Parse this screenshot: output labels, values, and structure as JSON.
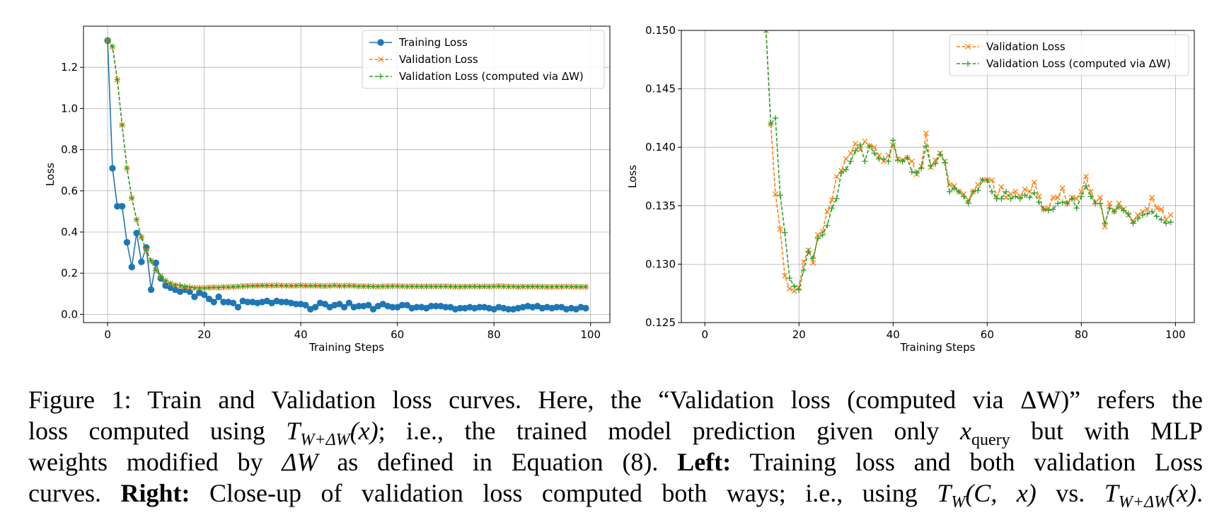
{
  "chart_data": [
    {
      "type": "line",
      "xlabel": "Training Steps",
      "ylabel": "Loss",
      "xlim": [
        -5,
        104
      ],
      "ylim": [
        -0.04,
        1.4
      ],
      "xticks": [
        0,
        20,
        40,
        60,
        80,
        100
      ],
      "yticks": [
        0.0,
        0.2,
        0.4,
        0.6,
        0.8,
        1.0,
        1.2
      ],
      "ytick_labels": [
        "0.0",
        "0.2",
        "0.4",
        "0.6",
        "0.8",
        "1.0",
        "1.2"
      ],
      "grid": true,
      "legend_position": "upper-right",
      "series": [
        {
          "name": "Training Loss",
          "color": "#1f77b4",
          "marker": "circle",
          "linestyle": "solid",
          "x": [
            0,
            1,
            2,
            3,
            4,
            5,
            6,
            7,
            8,
            9,
            10,
            11,
            12,
            13,
            14,
            15,
            16,
            17,
            18,
            19,
            20,
            21,
            22,
            23,
            24,
            25,
            26,
            27,
            28,
            29,
            30,
            31,
            32,
            33,
            34,
            35,
            36,
            37,
            38,
            39,
            40,
            41,
            42,
            43,
            44,
            45,
            46,
            47,
            48,
            49,
            50,
            51,
            52,
            53,
            54,
            55,
            56,
            57,
            58,
            59,
            60,
            61,
            62,
            63,
            64,
            65,
            66,
            67,
            68,
            69,
            70,
            71,
            72,
            73,
            74,
            75,
            76,
            77,
            78,
            79,
            80,
            81,
            82,
            83,
            84,
            85,
            86,
            87,
            88,
            89,
            90,
            91,
            92,
            93,
            94,
            95,
            96,
            97,
            98,
            99
          ],
          "y": [
            1.33,
            0.71,
            0.525,
            0.525,
            0.35,
            0.23,
            0.395,
            0.255,
            0.325,
            0.12,
            0.25,
            0.175,
            0.14,
            0.13,
            0.12,
            0.11,
            0.12,
            0.11,
            0.085,
            0.105,
            0.095,
            0.075,
            0.06,
            0.085,
            0.06,
            0.06,
            0.055,
            0.035,
            0.065,
            0.06,
            0.06,
            0.055,
            0.06,
            0.065,
            0.055,
            0.065,
            0.06,
            0.06,
            0.055,
            0.05,
            0.05,
            0.045,
            0.025,
            0.035,
            0.055,
            0.05,
            0.035,
            0.045,
            0.05,
            0.035,
            0.055,
            0.035,
            0.04,
            0.04,
            0.045,
            0.025,
            0.04,
            0.05,
            0.04,
            0.035,
            0.035,
            0.045,
            0.045,
            0.03,
            0.035,
            0.035,
            0.03,
            0.04,
            0.04,
            0.04,
            0.035,
            0.035,
            0.025,
            0.03,
            0.03,
            0.035,
            0.03,
            0.035,
            0.035,
            0.03,
            0.025,
            0.035,
            0.03,
            0.025,
            0.025,
            0.03,
            0.035,
            0.04,
            0.035,
            0.04,
            0.03,
            0.035,
            0.03,
            0.035,
            0.035,
            0.025,
            0.03,
            0.025,
            0.035,
            0.03
          ]
        },
        {
          "name": "Validation Loss",
          "color": "#ff7f0e",
          "marker": "x",
          "linestyle": "dashed",
          "x": [
            0,
            1,
            2,
            3,
            4,
            5,
            6,
            7,
            8,
            9,
            10,
            11,
            12,
            13,
            14,
            15,
            16,
            17,
            18,
            19,
            20,
            21,
            22,
            23,
            24,
            25,
            26,
            27,
            28,
            29,
            30,
            31,
            32,
            33,
            34,
            35,
            36,
            37,
            38,
            39,
            40,
            41,
            42,
            43,
            44,
            45,
            46,
            47,
            48,
            49,
            50,
            51,
            52,
            53,
            54,
            55,
            56,
            57,
            58,
            59,
            60,
            61,
            62,
            63,
            64,
            65,
            66,
            67,
            68,
            69,
            70,
            71,
            72,
            73,
            74,
            75,
            76,
            77,
            78,
            79,
            80,
            81,
            82,
            83,
            84,
            85,
            86,
            87,
            88,
            89,
            90,
            91,
            92,
            93,
            94,
            95,
            96,
            97,
            98,
            99
          ],
          "y": [
            1.33,
            1.3,
            1.14,
            0.92,
            0.71,
            0.565,
            0.46,
            0.375,
            0.31,
            0.26,
            0.215,
            0.185,
            0.163,
            0.15,
            0.142,
            0.136,
            0.133,
            0.129,
            0.1279,
            0.1277,
            0.128,
            0.1302,
            0.1312,
            0.1301,
            0.1325,
            0.1328,
            0.1345,
            0.1355,
            0.1375,
            0.138,
            0.139,
            0.1395,
            0.1403,
            0.1398,
            0.1405,
            0.1401,
            0.14,
            0.1393,
            0.1388,
            0.1393,
            0.1402,
            0.139,
            0.1389,
            0.1391,
            0.1388,
            0.1377,
            0.1384,
            0.1412,
            0.1383,
            0.1389,
            0.1395,
            0.1388,
            0.1368,
            0.1367,
            0.1362,
            0.136,
            0.1355,
            0.1362,
            0.1368,
            0.1372,
            0.1372,
            0.1372,
            0.1358,
            0.1366,
            0.1357,
            0.136,
            0.1362,
            0.1358,
            0.1364,
            0.1362,
            0.137,
            0.1358,
            0.1347,
            0.1348,
            0.1357,
            0.1357,
            0.1365,
            0.1352,
            0.1357,
            0.1356,
            0.1362,
            0.1375,
            0.1362,
            0.1353,
            0.1357,
            0.1332,
            0.1352,
            0.1345,
            0.1352,
            0.1347,
            0.1342,
            0.1337,
            0.1342,
            0.1345,
            0.1347,
            0.1357,
            0.1348,
            0.1347,
            0.1338,
            0.1342
          ]
        },
        {
          "name": "Validation Loss (computed via ΔW)",
          "color": "#2ca02c",
          "marker": "+",
          "linestyle": "dashed",
          "x": [
            0,
            1,
            2,
            3,
            4,
            5,
            6,
            7,
            8,
            9,
            10,
            11,
            12,
            13,
            14,
            15,
            16,
            17,
            18,
            19,
            20,
            21,
            22,
            23,
            24,
            25,
            26,
            27,
            28,
            29,
            30,
            31,
            32,
            33,
            34,
            35,
            36,
            37,
            38,
            39,
            40,
            41,
            42,
            43,
            44,
            45,
            46,
            47,
            48,
            49,
            50,
            51,
            52,
            53,
            54,
            55,
            56,
            57,
            58,
            59,
            60,
            61,
            62,
            63,
            64,
            65,
            66,
            67,
            68,
            69,
            70,
            71,
            72,
            73,
            74,
            75,
            76,
            77,
            78,
            79,
            80,
            81,
            82,
            83,
            84,
            85,
            86,
            87,
            88,
            89,
            90,
            91,
            92,
            93,
            94,
            95,
            96,
            97,
            98,
            99
          ],
          "y": [
            1.33,
            1.3,
            1.14,
            0.92,
            0.71,
            0.565,
            0.46,
            0.375,
            0.31,
            0.26,
            0.215,
            0.185,
            0.163,
            0.15,
            0.142,
            0.1425,
            0.1359,
            0.1327,
            0.1288,
            0.1281,
            0.1278,
            0.1295,
            0.1311,
            0.1305,
            0.1322,
            0.1325,
            0.1333,
            0.1348,
            0.1356,
            0.1378,
            0.1381,
            0.1388,
            0.1397,
            0.1402,
            0.1388,
            0.1401,
            0.1395,
            0.139,
            0.139,
            0.1388,
            0.1406,
            0.1389,
            0.1388,
            0.1391,
            0.1379,
            0.1378,
            0.1382,
            0.1401,
            0.1384,
            0.1386,
            0.1394,
            0.1387,
            0.1362,
            0.1365,
            0.1362,
            0.1358,
            0.1352,
            0.1362,
            0.1363,
            0.1372,
            0.1372,
            0.1362,
            0.1356,
            0.1356,
            0.1362,
            0.1356,
            0.1358,
            0.1356,
            0.1359,
            0.1357,
            0.1361,
            0.1353,
            0.1347,
            0.1346,
            0.1347,
            0.1352,
            0.1353,
            0.1352,
            0.1356,
            0.1348,
            0.1358,
            0.1367,
            0.1358,
            0.1352,
            0.1352,
            0.1335,
            0.1348,
            0.1345,
            0.1349,
            0.1346,
            0.1343,
            0.1335,
            0.1339,
            0.1342,
            0.1343,
            0.1345,
            0.1341,
            0.1338,
            0.1335,
            0.1336
          ]
        }
      ]
    },
    {
      "type": "line",
      "xlabel": "Training Steps",
      "ylabel": "Loss",
      "xlim": [
        -5,
        104
      ],
      "ylim": [
        0.125,
        0.15
      ],
      "xticks": [
        0,
        20,
        40,
        60,
        80,
        100
      ],
      "yticks": [
        0.125,
        0.13,
        0.135,
        0.14,
        0.145,
        0.15
      ],
      "ytick_labels": [
        "0.125",
        "0.130",
        "0.135",
        "0.140",
        "0.145",
        "0.150"
      ],
      "grid": true,
      "legend_position": "upper-right",
      "series_refs": [
        "Validation Loss",
        "Validation Loss (computed via ΔW)"
      ]
    }
  ],
  "caption": {
    "line1": "Figure 1: Train and Validation loss curves. Here, the “Validation loss (computed via ΔW)” refers the",
    "line2_a": "loss computed using",
    "line2_math1": "T",
    "line2_math1_sub": "W+ΔW",
    "line2_math1_arg": "(x)",
    "line2_b": "; i.e., the trained model prediction given only",
    "line2_math2": "x",
    "line2_math2_sub": "query",
    "line2_c": "but with MLP",
    "line3_a": "weights modified by",
    "line3_math": "ΔW",
    "line3_b": "as defined in Equation (8).",
    "line3_bold": "Left:",
    "line3_c": "Training loss and both validation Loss",
    "line4_a": "curves.",
    "line4_bold": "Right:",
    "line4_b": "Close-up of validation loss computed both ways; i.e., using",
    "line4_math1": "T",
    "line4_math1_sub": "W",
    "line4_math1_arg": "(C, x)",
    "line4_c": "vs.",
    "line4_math2": "T",
    "line4_math2_sub": "W+ΔW",
    "line4_math2_arg": "(x)",
    "line4_d": "."
  }
}
